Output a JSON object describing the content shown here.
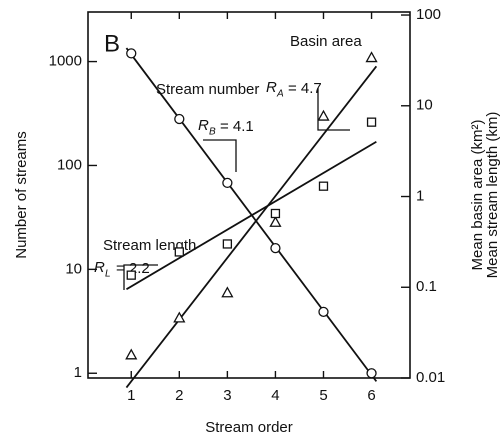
{
  "chart_data": {
    "type": "scatter",
    "panel_label": "B",
    "x_label": "Stream order",
    "y_label": "Number of streams",
    "y2_label": [
      "Mean basin area (km²)",
      "Mean stream length (km)"
    ],
    "x": [
      1,
      2,
      3,
      4,
      5,
      6
    ],
    "xlim": [
      0.1,
      6.8
    ],
    "xticks": [
      1,
      2,
      3,
      4,
      5,
      6
    ],
    "ylim": [
      0.9,
      3000
    ],
    "yticks": [
      1,
      10,
      100,
      1000
    ],
    "ylog": true,
    "y2lim": [
      0.01,
      108
    ],
    "y2ticks": [
      0.01,
      0.1,
      1,
      10,
      100
    ],
    "y2log": true,
    "series": [
      {
        "name": "Stream number",
        "marker": "circle",
        "color": "#111111",
        "values": [
          1200,
          280,
          68,
          16,
          3.9,
          1
        ]
      },
      {
        "name": "Basin area",
        "marker": "triangle",
        "color": "#111111",
        "axis": "y2",
        "values": [
          0.018,
          0.046,
          0.087,
          0.52,
          7.7,
          34
        ]
      },
      {
        "name": "Stream length",
        "marker": "square",
        "color": "#111111",
        "axis": "y2",
        "values": [
          0.136,
          0.245,
          0.3,
          0.65,
          1.3,
          6.6
        ]
      }
    ],
    "ratios": [
      {
        "symbol": "R",
        "sub": "B",
        "text": "= 4.1"
      },
      {
        "symbol": "R",
        "sub": "A",
        "text": "= 4.7"
      },
      {
        "symbol": "R",
        "sub": "L",
        "text": "= 2.2"
      }
    ]
  }
}
